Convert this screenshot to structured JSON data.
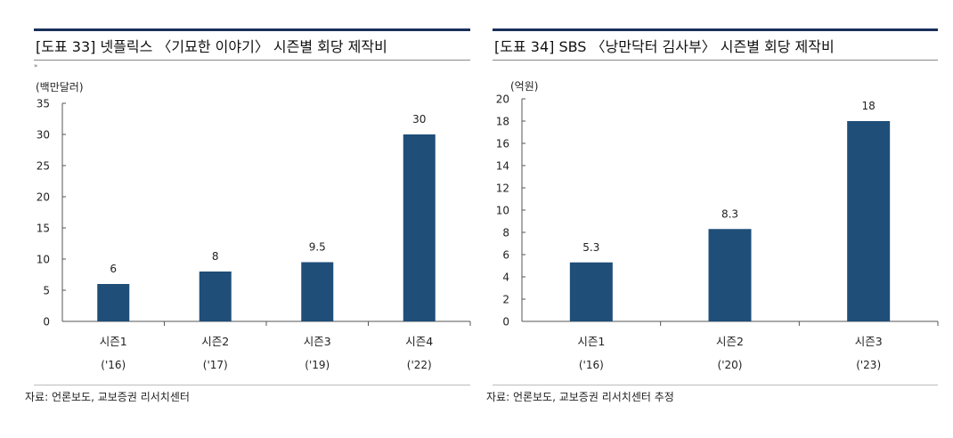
{
  "left": {
    "title": "[도표 33] 넷플릭스 〈기묘한 이야기〉 시즌별 회당 제작비",
    "marker": "»",
    "source": "자료: 언론보도, 교보증권 리서치센터"
  },
  "right": {
    "title": "[도표 34] SBS 〈낭만닥터 김사부〉 시즌별 회당 제작비",
    "source": "자료: 언론보도, 교보증권 리서치센터 추정"
  },
  "chart_data": [
    {
      "type": "bar",
      "title": "[도표 33] 넷플릭스 〈기묘한 이야기〉 시즌별 회당 제작비",
      "ylabel": "(백만달러)",
      "categories": [
        "시즌1",
        "시즌2",
        "시즌3",
        "시즌4"
      ],
      "sublabels": [
        "('16)",
        "('17)",
        "('19)",
        "('22)"
      ],
      "values": [
        6,
        8,
        9.5,
        30
      ],
      "value_labels": [
        "6",
        "8",
        "9.5",
        "30"
      ],
      "ylim": [
        0,
        35
      ],
      "yticks": [
        0,
        5,
        10,
        15,
        20,
        25,
        30,
        35
      ],
      "grid": false,
      "color": "#1f4e79"
    },
    {
      "type": "bar",
      "title": "[도표 34] SBS 〈낭만닥터 김사부〉 시즌별 회당 제작비",
      "ylabel": "(억원)",
      "categories": [
        "시즌1",
        "시즌2",
        "시즌3"
      ],
      "sublabels": [
        "('16)",
        "('20)",
        "('23)"
      ],
      "values": [
        5.3,
        8.3,
        18
      ],
      "value_labels": [
        "5.3",
        "8.3",
        "18"
      ],
      "ylim": [
        0,
        20
      ],
      "yticks": [
        0,
        2,
        4,
        6,
        8,
        10,
        12,
        14,
        16,
        18,
        20
      ],
      "grid": false,
      "color": "#1f4e79"
    }
  ]
}
